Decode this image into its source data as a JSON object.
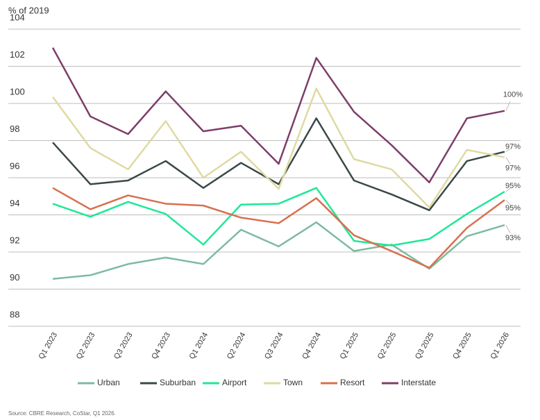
{
  "chart_data": {
    "type": "line",
    "y_axis_label": "% of 2019",
    "source": "Source: CBRE Research, CoStar, Q1 2026.",
    "categories": [
      "Q1 2023",
      "Q2 2023",
      "Q3 2023",
      "Q4 2023",
      "Q1 2024",
      "Q2 2024",
      "Q3 2024",
      "Q4 2024",
      "Q1 2025",
      "Q2 2025",
      "Q3 2025",
      "Q4 2025",
      "Q1 2026"
    ],
    "ylim": [
      88,
      104
    ],
    "yticks": [
      88,
      90,
      92,
      94,
      96,
      98,
      100,
      102,
      104
    ],
    "grid": true,
    "legend": "bottom",
    "series": [
      {
        "name": "Urban",
        "color": "#7dbaa2",
        "values": [
          90.55,
          90.75,
          91.35,
          91.7,
          91.35,
          93.2,
          92.3,
          93.6,
          92.05,
          92.4,
          91.1,
          92.85,
          93.45
        ],
        "value_labels": [
          null,
          null,
          null,
          null,
          null,
          null,
          null,
          null,
          null,
          null,
          null,
          null,
          "93%"
        ]
      },
      {
        "name": "Suburban",
        "color": "#3b4848",
        "values": [
          97.9,
          95.65,
          95.85,
          96.9,
          95.45,
          96.8,
          95.65,
          99.2,
          95.85,
          95.1,
          94.25,
          96.9,
          97.4
        ],
        "value_labels": [
          null,
          null,
          null,
          null,
          null,
          null,
          null,
          null,
          null,
          null,
          null,
          null,
          "97%"
        ]
      },
      {
        "name": "Airport",
        "color": "#1ee896",
        "values": [
          94.6,
          93.9,
          94.7,
          94.05,
          92.4,
          94.55,
          94.6,
          95.45,
          92.6,
          92.35,
          92.7,
          94.05,
          95.25
        ],
        "value_labels": [
          null,
          null,
          null,
          null,
          null,
          null,
          null,
          null,
          null,
          null,
          null,
          null,
          "95%"
        ]
      },
      {
        "name": "Town",
        "color": "#dedaa2",
        "values": [
          100.35,
          97.6,
          96.45,
          99.05,
          96.0,
          97.4,
          95.4,
          100.8,
          97.0,
          96.45,
          94.4,
          97.5,
          97.1
        ],
        "value_labels": [
          null,
          null,
          null,
          null,
          null,
          null,
          null,
          null,
          null,
          null,
          null,
          null,
          "97%"
        ]
      },
      {
        "name": "Resort",
        "color": "#d8704e",
        "values": [
          95.45,
          94.3,
          95.05,
          94.6,
          94.5,
          93.85,
          93.55,
          94.9,
          92.9,
          92.05,
          91.15,
          93.3,
          94.8
        ],
        "value_labels": [
          null,
          null,
          null,
          null,
          null,
          null,
          null,
          null,
          null,
          null,
          null,
          null,
          "95%"
        ]
      },
      {
        "name": "Interstate",
        "color": "#7d3e69",
        "values": [
          103.0,
          99.3,
          98.35,
          100.65,
          98.5,
          98.8,
          96.75,
          102.45,
          99.55,
          97.75,
          95.75,
          99.2,
          99.6
        ],
        "value_labels": [
          null,
          null,
          null,
          null,
          null,
          null,
          null,
          null,
          null,
          null,
          null,
          null,
          "100%"
        ]
      }
    ]
  }
}
